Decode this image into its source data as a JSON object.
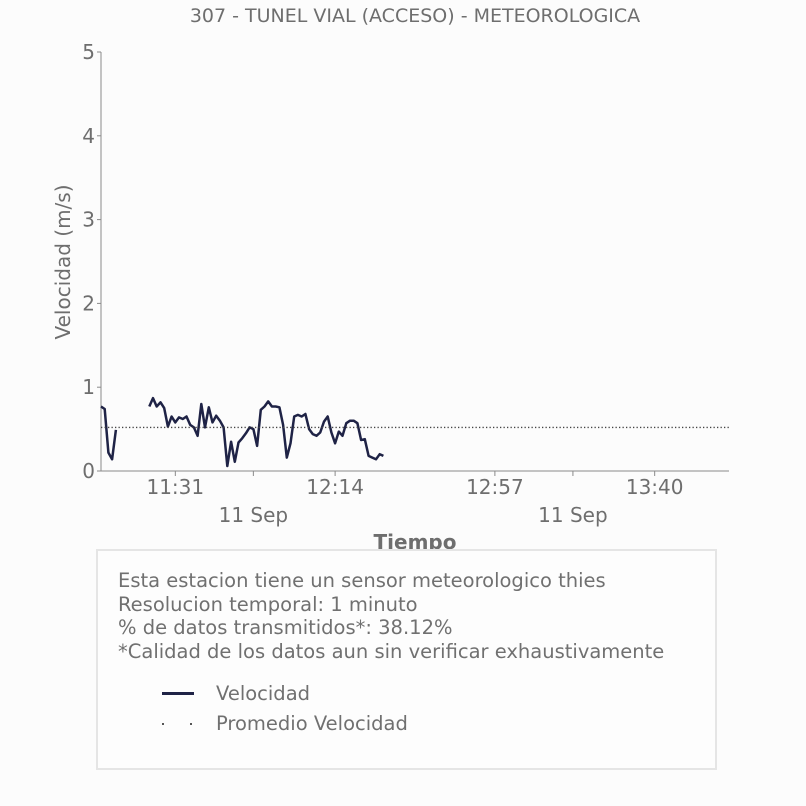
{
  "chart_data": {
    "type": "line",
    "title": "307 - TUNEL VIAL (ACCESO) - METEOROLOGICA",
    "ylabel": "Velocidad (m/s)",
    "xlabel": "Tiempo",
    "ylim": [
      0,
      5
    ],
    "yticks": [
      "0",
      "1",
      "2",
      "3",
      "4",
      "5"
    ],
    "xlim": [
      "11:11",
      "14:00"
    ],
    "xticks": [
      {
        "time": "11:31",
        "label": "11:31",
        "date": ""
      },
      {
        "time": "11:52",
        "label": "",
        "date": "11 Sep"
      },
      {
        "time": "12:14",
        "label": "12:14",
        "date": ""
      },
      {
        "time": "12:57",
        "label": "12:57",
        "date": ""
      },
      {
        "time": "13:18",
        "label": "",
        "date": "11 Sep"
      },
      {
        "time": "13:40",
        "label": "13:40",
        "date": ""
      }
    ],
    "grid": false,
    "series": [
      {
        "name": "Velocidad",
        "color": "#1f2346",
        "style": "solid",
        "segments": [
          [
            [
              "11:11",
              0.77
            ],
            [
              "11:12",
              0.74
            ],
            [
              "11:13",
              0.22
            ],
            [
              "11:14",
              0.14
            ],
            [
              "11:15",
              0.49
            ]
          ],
          [
            [
              "11:24",
              0.77
            ],
            [
              "11:25",
              0.87
            ],
            [
              "11:26",
              0.77
            ],
            [
              "11:27",
              0.82
            ],
            [
              "11:28",
              0.75
            ],
            [
              "11:29",
              0.53
            ],
            [
              "11:30",
              0.65
            ],
            [
              "11:31",
              0.58
            ],
            [
              "11:32",
              0.64
            ],
            [
              "11:33",
              0.62
            ],
            [
              "11:34",
              0.65
            ],
            [
              "11:35",
              0.55
            ],
            [
              "11:36",
              0.52
            ],
            [
              "11:37",
              0.42
            ],
            [
              "11:38",
              0.8
            ],
            [
              "11:39",
              0.52
            ],
            [
              "11:40",
              0.76
            ],
            [
              "11:41",
              0.58
            ],
            [
              "11:42",
              0.66
            ],
            [
              "11:43",
              0.6
            ],
            [
              "11:44",
              0.52
            ],
            [
              "11:45",
              0.06
            ],
            [
              "11:46",
              0.35
            ],
            [
              "11:47",
              0.11
            ],
            [
              "11:48",
              0.34
            ],
            [
              "11:49",
              0.39
            ],
            [
              "11:50",
              0.45
            ],
            [
              "11:51",
              0.52
            ],
            [
              "11:52",
              0.5
            ],
            [
              "11:53",
              0.3
            ],
            [
              "11:54",
              0.73
            ],
            [
              "11:55",
              0.77
            ],
            [
              "11:56",
              0.83
            ],
            [
              "11:57",
              0.77
            ],
            [
              "11:58",
              0.77
            ],
            [
              "11:59",
              0.76
            ],
            [
              "12:00",
              0.55
            ],
            [
              "12:01",
              0.16
            ],
            [
              "12:02",
              0.33
            ],
            [
              "12:03",
              0.65
            ],
            [
              "12:04",
              0.67
            ],
            [
              "12:05",
              0.65
            ],
            [
              "12:06",
              0.68
            ],
            [
              "12:07",
              0.5
            ],
            [
              "12:08",
              0.44
            ],
            [
              "12:09",
              0.42
            ],
            [
              "12:10",
              0.46
            ],
            [
              "12:11",
              0.59
            ],
            [
              "12:12",
              0.65
            ],
            [
              "12:13",
              0.46
            ],
            [
              "12:14",
              0.33
            ],
            [
              "12:15",
              0.47
            ],
            [
              "12:16",
              0.42
            ],
            [
              "12:17",
              0.57
            ],
            [
              "12:18",
              0.6
            ],
            [
              "12:19",
              0.6
            ],
            [
              "12:20",
              0.57
            ],
            [
              "12:21",
              0.37
            ],
            [
              "12:22",
              0.38
            ],
            [
              "12:23",
              0.18
            ],
            [
              "12:24",
              0.16
            ],
            [
              "12:25",
              0.14
            ],
            [
              "12:26",
              0.2
            ],
            [
              "12:27",
              0.18
            ]
          ]
        ]
      },
      {
        "name": "Promedio Velocidad",
        "color": "#444444",
        "style": "dotted",
        "value": 0.52
      }
    ]
  },
  "info": {
    "lines": [
      "Esta estacion tiene un sensor meteorologico thies",
      "Resolucion temporal: 1 minuto",
      "% de datos transmitidos*: 38.12%",
      "*Calidad de los datos aun sin verificar exhaustivamente"
    ]
  },
  "legend": [
    {
      "label": "Velocidad",
      "style": "solid"
    },
    {
      "label": "Promedio Velocidad",
      "style": "dotted"
    }
  ]
}
